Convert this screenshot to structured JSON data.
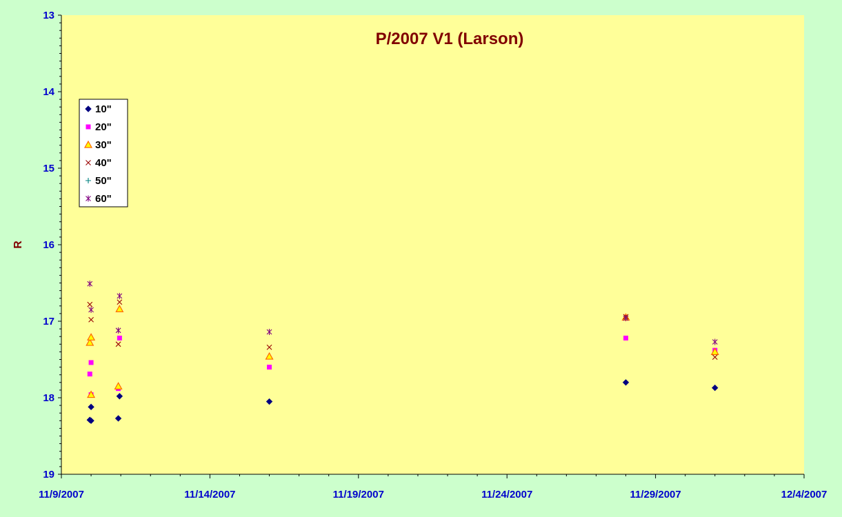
{
  "chart_data": {
    "type": "scatter",
    "title": "P/2007 V1 (Larson)",
    "xlabel": "",
    "ylabel": "R",
    "x_tick_labels": [
      "11/9/2007",
      "11/14/2007",
      "11/19/2007",
      "11/24/2007",
      "11/29/2007",
      "12/4/2007"
    ],
    "xlim": [
      "2007-11-09",
      "2007-12-04"
    ],
    "ylim": [
      13,
      19
    ],
    "y_inverted": true,
    "y_tick_labels": [
      "13",
      "14",
      "15",
      "16",
      "17",
      "18",
      "19"
    ],
    "legend_position": "left",
    "colors": {
      "plot_bg": "#ffff99",
      "page_bg": "#ccffcc",
      "tick_text": "#0000cc",
      "title_text": "#800000"
    },
    "series": [
      {
        "name": "10\"",
        "marker": "diamond",
        "color": "#000080",
        "points": [
          {
            "x": "2007-11-09 23:00",
            "y": 18.29
          },
          {
            "x": "2007-11-10 00:00",
            "y": 18.3
          },
          {
            "x": "2007-11-10 00:00",
            "y": 18.12
          },
          {
            "x": "2007-11-10 22:00",
            "y": 18.27
          },
          {
            "x": "2007-11-10 23:00",
            "y": 17.98
          },
          {
            "x": "2007-11-16 00:00",
            "y": 18.05
          },
          {
            "x": "2007-11-28 00:00",
            "y": 17.8
          },
          {
            "x": "2007-12-01 00:00",
            "y": 17.87
          }
        ]
      },
      {
        "name": "20\"",
        "marker": "square",
        "color": "#ff00ff",
        "points": [
          {
            "x": "2007-11-09 23:00",
            "y": 17.69
          },
          {
            "x": "2007-11-10 00:00",
            "y": 17.54
          },
          {
            "x": "2007-11-10 00:00",
            "y": 17.96
          },
          {
            "x": "2007-11-10 22:00",
            "y": 17.88
          },
          {
            "x": "2007-11-10 23:00",
            "y": 17.22
          },
          {
            "x": "2007-11-16 00:00",
            "y": 17.6
          },
          {
            "x": "2007-11-28 00:00",
            "y": 17.22
          },
          {
            "x": "2007-12-01 00:00",
            "y": 17.38
          }
        ]
      },
      {
        "name": "30\"",
        "marker": "triangle",
        "color": "#ff6600",
        "fill": "#ffff00",
        "points": [
          {
            "x": "2007-11-09 23:00",
            "y": 17.28
          },
          {
            "x": "2007-11-10 00:00",
            "y": 17.21
          },
          {
            "x": "2007-11-10 00:00",
            "y": 17.96
          },
          {
            "x": "2007-11-10 22:00",
            "y": 17.85
          },
          {
            "x": "2007-11-10 23:00",
            "y": 16.84
          },
          {
            "x": "2007-11-16 00:00",
            "y": 17.46
          },
          {
            "x": "2007-11-28 00:00",
            "y": 16.95
          },
          {
            "x": "2007-12-01 00:00",
            "y": 17.4
          }
        ]
      },
      {
        "name": "40\"",
        "marker": "x",
        "color": "#990000",
        "points": [
          {
            "x": "2007-11-09 23:00",
            "y": 16.78
          },
          {
            "x": "2007-11-10 00:00",
            "y": 16.98
          },
          {
            "x": "2007-11-10 22:00",
            "y": 17.3
          },
          {
            "x": "2007-11-10 23:00",
            "y": 16.75
          },
          {
            "x": "2007-11-16 00:00",
            "y": 17.34
          },
          {
            "x": "2007-11-28 00:00",
            "y": 16.94
          },
          {
            "x": "2007-12-01 00:00",
            "y": 17.47
          }
        ]
      },
      {
        "name": "50\"",
        "marker": "plus",
        "color": "#008080",
        "points": []
      },
      {
        "name": "60\"",
        "marker": "asterisk",
        "color": "#800080",
        "points": [
          {
            "x": "2007-11-09 23:00",
            "y": 16.51
          },
          {
            "x": "2007-11-10 00:00",
            "y": 16.85
          },
          {
            "x": "2007-11-10 22:00",
            "y": 17.12
          },
          {
            "x": "2007-11-10 23:00",
            "y": 16.67
          },
          {
            "x": "2007-11-16 00:00",
            "y": 17.14
          },
          {
            "x": "2007-11-28 00:00",
            "y": 16.96
          },
          {
            "x": "2007-12-01 00:00",
            "y": 17.27
          }
        ]
      }
    ]
  }
}
